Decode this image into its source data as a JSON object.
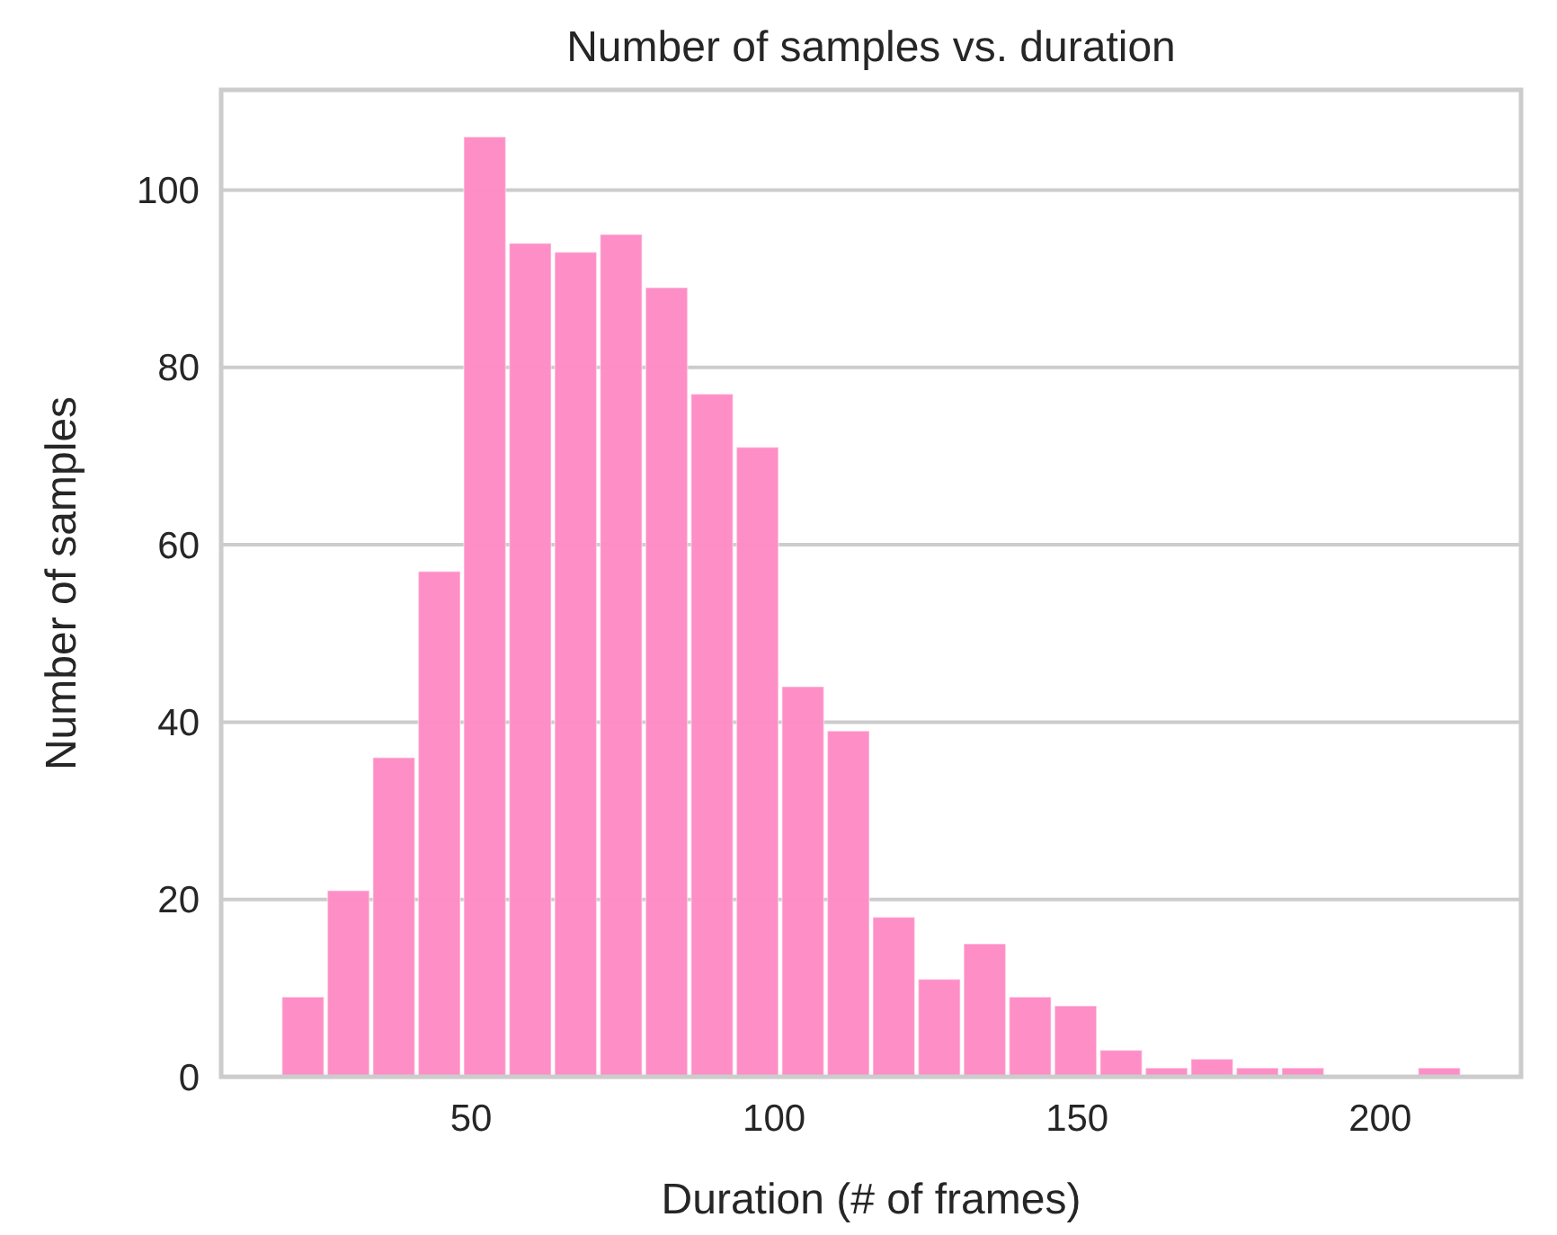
{
  "chart_data": {
    "type": "histogram",
    "title": "Number of samples vs. duration",
    "xlabel": "Duration (# of frames)",
    "ylabel": "Number of samples",
    "bins": [
      18.5,
      26,
      33.5,
      41,
      48.5,
      56,
      63.5,
      71,
      78.5,
      86,
      93.5,
      101,
      108.5,
      116,
      123.5,
      131,
      138.5,
      146,
      153.5,
      161,
      168.5,
      176,
      183.5,
      191,
      198.5,
      206,
      213.5
    ],
    "values": [
      9,
      21,
      36,
      57,
      106,
      94,
      93,
      95,
      89,
      77,
      71,
      44,
      39,
      18,
      11,
      15,
      9,
      8,
      3,
      1,
      2,
      1,
      1,
      0,
      0,
      1
    ],
    "color": "#fd8dc5",
    "xlim": [
      8.75,
      223.25
    ],
    "xticks": [
      50,
      100,
      150,
      200
    ],
    "ylim": [
      0,
      111.3
    ],
    "yticks": [
      0,
      20,
      40,
      60,
      80,
      100
    ],
    "grid": "y"
  }
}
